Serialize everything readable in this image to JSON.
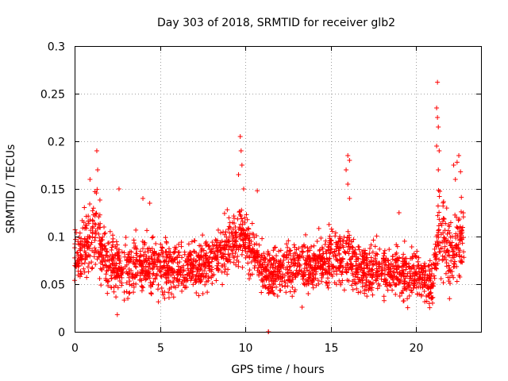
{
  "chart_data": {
    "type": "scatter",
    "title": "Day 303 of 2018, SRMTID for receiver glb2",
    "xlabel": "GPS time / hours",
    "ylabel": "SRMTID / TECUs",
    "xlim": [
      0,
      24
    ],
    "ylim": [
      0,
      0.3
    ],
    "xticks": [
      0,
      5,
      10,
      15,
      20
    ],
    "xtick_labels": [
      "0",
      "5",
      "10",
      "15",
      "20"
    ],
    "yticks": [
      0,
      0.05,
      0.1,
      0.15,
      0.2,
      0.25,
      0.3
    ],
    "ytick_labels": [
      "0",
      "0.05",
      "0.1",
      "0.15",
      "0.2",
      "0.25",
      "0.3"
    ],
    "grid": true,
    "marker": "+",
    "color": "#ff0000",
    "series": [
      {
        "name": "SRMTID",
        "segments": [
          {
            "x": 0.0,
            "median": 0.07,
            "spread": 0.03
          },
          {
            "x": 0.5,
            "median": 0.09,
            "spread": 0.035
          },
          {
            "x": 1.0,
            "median": 0.1,
            "spread": 0.04
          },
          {
            "x": 1.3,
            "median": 0.11,
            "spread": 0.045
          },
          {
            "x": 1.8,
            "median": 0.075,
            "spread": 0.03
          },
          {
            "x": 3.0,
            "median": 0.065,
            "spread": 0.03
          },
          {
            "x": 4.5,
            "median": 0.07,
            "spread": 0.035
          },
          {
            "x": 6.0,
            "median": 0.065,
            "spread": 0.03
          },
          {
            "x": 8.0,
            "median": 0.075,
            "spread": 0.03
          },
          {
            "x": 9.5,
            "median": 0.1,
            "spread": 0.035
          },
          {
            "x": 10.0,
            "median": 0.1,
            "spread": 0.035
          },
          {
            "x": 11.0,
            "median": 0.065,
            "spread": 0.025
          },
          {
            "x": 12.5,
            "median": 0.065,
            "spread": 0.03
          },
          {
            "x": 14.5,
            "median": 0.07,
            "spread": 0.03
          },
          {
            "x": 16.0,
            "median": 0.085,
            "spread": 0.035
          },
          {
            "x": 16.5,
            "median": 0.065,
            "spread": 0.03
          },
          {
            "x": 18.5,
            "median": 0.065,
            "spread": 0.03
          },
          {
            "x": 20.0,
            "median": 0.06,
            "spread": 0.03
          },
          {
            "x": 21.0,
            "median": 0.05,
            "spread": 0.025
          },
          {
            "x": 21.3,
            "median": 0.11,
            "spread": 0.05
          },
          {
            "x": 22.0,
            "median": 0.08,
            "spread": 0.035
          },
          {
            "x": 22.8,
            "median": 0.1,
            "spread": 0.04
          }
        ],
        "outliers": [
          {
            "x": 1.3,
            "y": 0.19
          },
          {
            "x": 1.35,
            "y": 0.17
          },
          {
            "x": 0.9,
            "y": 0.16
          },
          {
            "x": 2.6,
            "y": 0.15
          },
          {
            "x": 2.5,
            "y": 0.018
          },
          {
            "x": 4.0,
            "y": 0.14
          },
          {
            "x": 4.4,
            "y": 0.135
          },
          {
            "x": 9.7,
            "y": 0.205
          },
          {
            "x": 9.75,
            "y": 0.19
          },
          {
            "x": 9.8,
            "y": 0.175
          },
          {
            "x": 9.6,
            "y": 0.165
          },
          {
            "x": 9.9,
            "y": 0.15
          },
          {
            "x": 10.7,
            "y": 0.148
          },
          {
            "x": 16.0,
            "y": 0.185
          },
          {
            "x": 16.1,
            "y": 0.18
          },
          {
            "x": 15.9,
            "y": 0.17
          },
          {
            "x": 16.0,
            "y": 0.155
          },
          {
            "x": 16.1,
            "y": 0.14
          },
          {
            "x": 19.0,
            "y": 0.125
          },
          {
            "x": 21.25,
            "y": 0.262
          },
          {
            "x": 21.2,
            "y": 0.235
          },
          {
            "x": 21.25,
            "y": 0.225
          },
          {
            "x": 21.3,
            "y": 0.215
          },
          {
            "x": 21.2,
            "y": 0.195
          },
          {
            "x": 21.35,
            "y": 0.19
          },
          {
            "x": 21.3,
            "y": 0.17
          },
          {
            "x": 22.5,
            "y": 0.185
          },
          {
            "x": 22.4,
            "y": 0.178
          },
          {
            "x": 22.2,
            "y": 0.175
          },
          {
            "x": 22.6,
            "y": 0.168
          },
          {
            "x": 22.3,
            "y": 0.16
          },
          {
            "x": 11.35,
            "y": 0.0
          },
          {
            "x": 11.35,
            "y": 0.0
          },
          {
            "x": 11.35,
            "y": 0.0
          }
        ]
      }
    ]
  }
}
